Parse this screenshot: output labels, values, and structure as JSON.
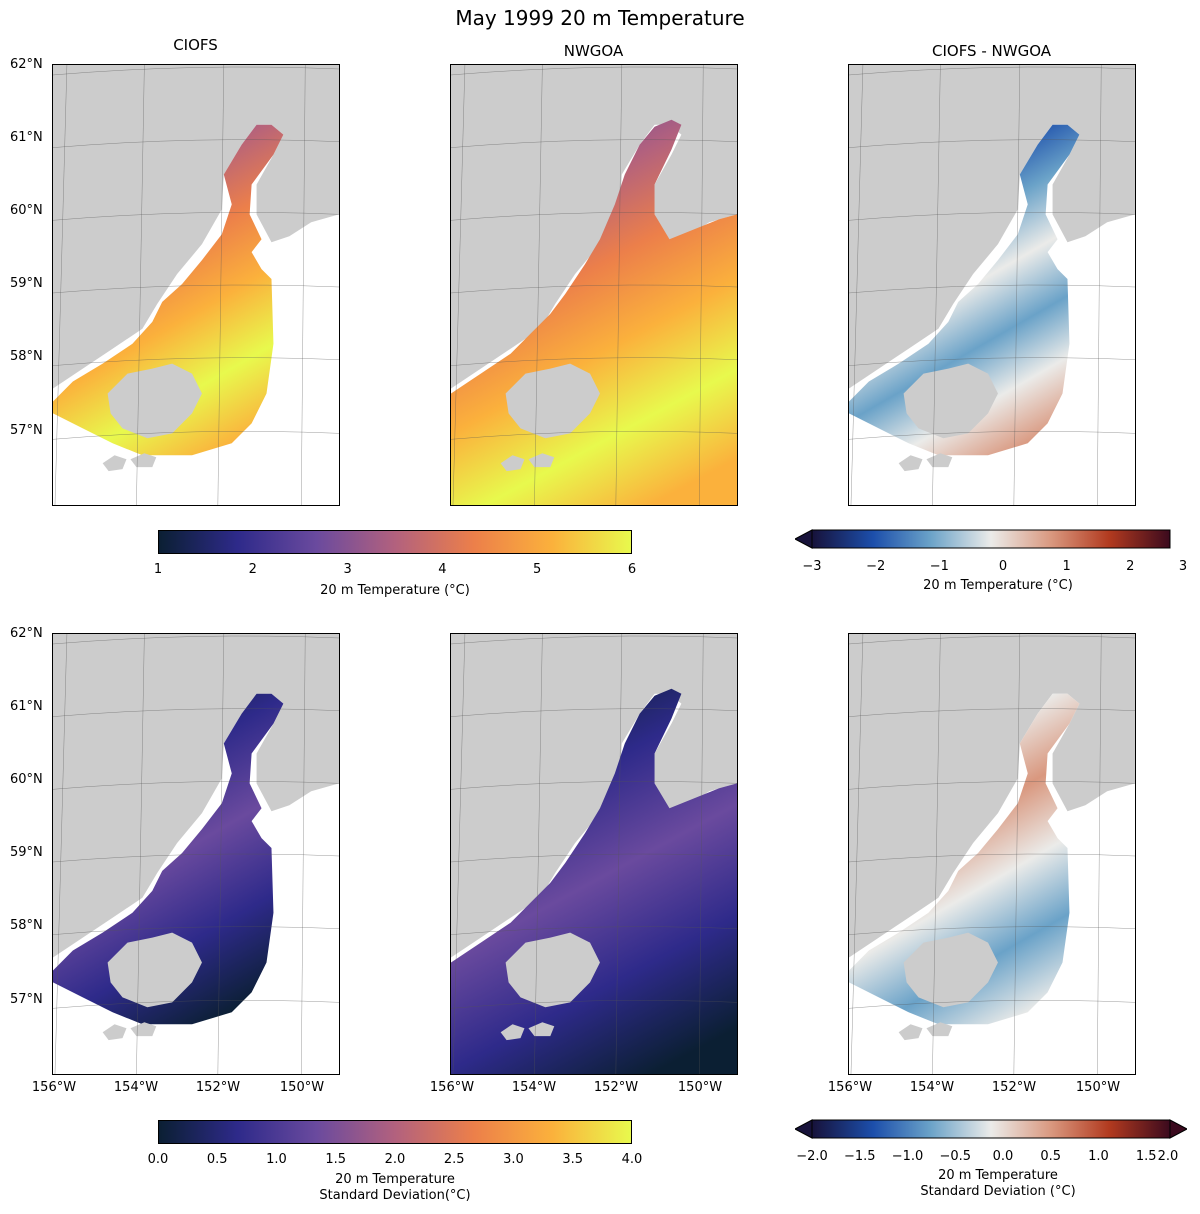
{
  "figure": {
    "title": "May 1999 20 m Temperature"
  },
  "panels": {
    "titles": [
      "CIOFS",
      "NWGOA",
      "CIOFS - NWGOA"
    ]
  },
  "axes": {
    "lat_ticks": [
      "62°N",
      "61°N",
      "60°N",
      "59°N",
      "58°N",
      "57°N"
    ],
    "lon_ticks": [
      "156°W",
      "154°W",
      "152°W",
      "150°W"
    ]
  },
  "colorbars": {
    "temp": {
      "label": "20 m Temperature (°C)",
      "ticks": [
        "1",
        "2",
        "3",
        "4",
        "5",
        "6"
      ],
      "colors": [
        "#0b1f33",
        "#2e2a8a",
        "#6a4a9e",
        "#b2617e",
        "#ec7f4a",
        "#fbb13c",
        "#e8f94d"
      ]
    },
    "temp_diff": {
      "label": "20 m Temperature (°C)",
      "ticks": [
        "−3",
        "−2",
        "−1",
        "0",
        "1",
        "2",
        "3"
      ],
      "colors": [
        "#17123a",
        "#1c4eab",
        "#6aa2c8",
        "#ebebe9",
        "#d9977e",
        "#b23a1f",
        "#3b0a1e"
      ]
    },
    "std": {
      "label_line1": "20 m Temperature",
      "label_line2": "Standard Deviation(°C)",
      "ticks": [
        "0.0",
        "0.5",
        "1.0",
        "1.5",
        "2.0",
        "2.5",
        "3.0",
        "3.5",
        "4.0"
      ],
      "colors": [
        "#0b1f33",
        "#2e2a8a",
        "#6a4a9e",
        "#b2617e",
        "#ec7f4a",
        "#fbb13c",
        "#e8f94d"
      ]
    },
    "std_diff": {
      "label_line1": "20 m Temperature",
      "label_line2": "Standard Deviation (°C)",
      "ticks": [
        "−2.0",
        "−1.5",
        "−1.0",
        "−0.5",
        "0.0",
        "0.5",
        "1.0",
        "1.5",
        "2.0"
      ],
      "colors": [
        "#17123a",
        "#1c4eab",
        "#6aa2c8",
        "#ebebe9",
        "#d9977e",
        "#b23a1f",
        "#3b0a1e"
      ]
    }
  },
  "style": {
    "land_color": "#cccccc"
  }
}
